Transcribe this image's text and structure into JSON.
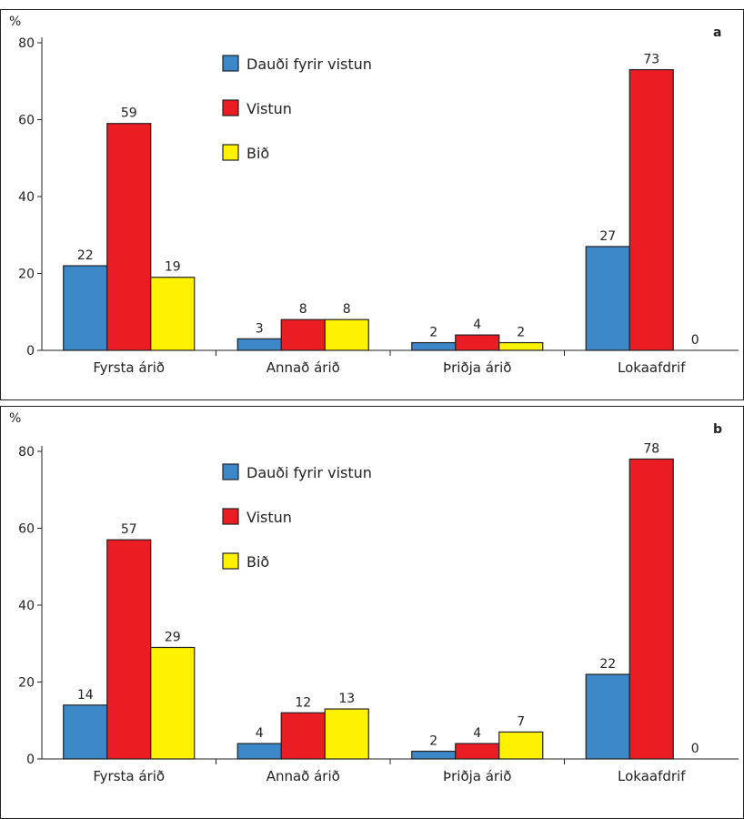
{
  "chart_data": [
    {
      "type": "bar",
      "panel_label": "a",
      "ylabel": "%",
      "ylim": [
        0,
        80
      ],
      "yticks": [
        0,
        20,
        40,
        60,
        80
      ],
      "categories": [
        "Fyrsta árið",
        "Annað árið",
        "Þriðja árið",
        "Lokaafdrif"
      ],
      "series": [
        {
          "name": "Dauði fyrir vistun",
          "color": "#3b87c8",
          "values": [
            22,
            3,
            2,
            27
          ]
        },
        {
          "name": "Vistun",
          "color": "#ec1c24",
          "values": [
            59,
            8,
            4,
            73
          ]
        },
        {
          "name": "Bið",
          "color": "#fff200",
          "values": [
            19,
            8,
            2,
            0
          ]
        }
      ],
      "legend_position": "top-left",
      "grid": false
    },
    {
      "type": "bar",
      "panel_label": "b",
      "ylabel": "%",
      "ylim": [
        0,
        80
      ],
      "yticks": [
        0,
        20,
        40,
        60,
        80
      ],
      "categories": [
        "Fyrsta árið",
        "Annað árið",
        "Þriðja árið",
        "Lokaafdrif"
      ],
      "series": [
        {
          "name": "Dauði fyrir vistun",
          "color": "#3b87c8",
          "values": [
            14,
            4,
            2,
            22
          ]
        },
        {
          "name": "Vistun",
          "color": "#ec1c24",
          "values": [
            57,
            12,
            4,
            78
          ]
        },
        {
          "name": "Bið",
          "color": "#fff200",
          "values": [
            29,
            13,
            7,
            0
          ]
        }
      ],
      "legend_position": "top-left",
      "grid": false
    }
  ]
}
